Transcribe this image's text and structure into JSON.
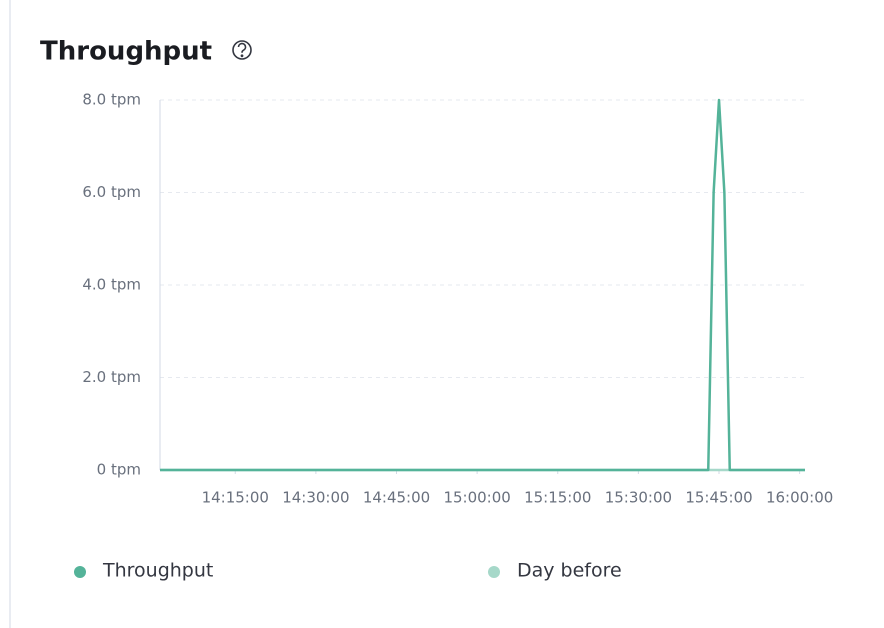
{
  "chart_data": {
    "type": "line",
    "title": "Throughput",
    "x": [
      "14:01:00",
      "15:43:00",
      "15:44:00",
      "15:45:00",
      "15:46:00",
      "15:47:00",
      "16:01:00"
    ],
    "series": [
      {
        "name": "Throughput",
        "color": "#54b399",
        "values": [
          0,
          0,
          6,
          8,
          6,
          0,
          0
        ]
      },
      {
        "name": "Day before",
        "color": "#a6d8c9",
        "values": [
          0,
          0,
          0,
          0,
          0,
          0,
          0
        ]
      }
    ],
    "xlim": [
      "14:01:00",
      "16:01:00"
    ],
    "xticks": [
      "14:15:00",
      "14:30:00",
      "14:45:00",
      "15:00:00",
      "15:15:00",
      "15:30:00",
      "15:45:00",
      "16:00:00"
    ],
    "ylim": [
      0,
      8
    ],
    "yticks": [
      {
        "value": 0,
        "label": "0 tpm"
      },
      {
        "value": 2,
        "label": "2.0 tpm"
      },
      {
        "value": 4,
        "label": "4.0 tpm"
      },
      {
        "value": 6,
        "label": "6.0 tpm"
      },
      {
        "value": 8,
        "label": "8.0 tpm"
      }
    ],
    "grid": true,
    "legend": "bottom"
  }
}
